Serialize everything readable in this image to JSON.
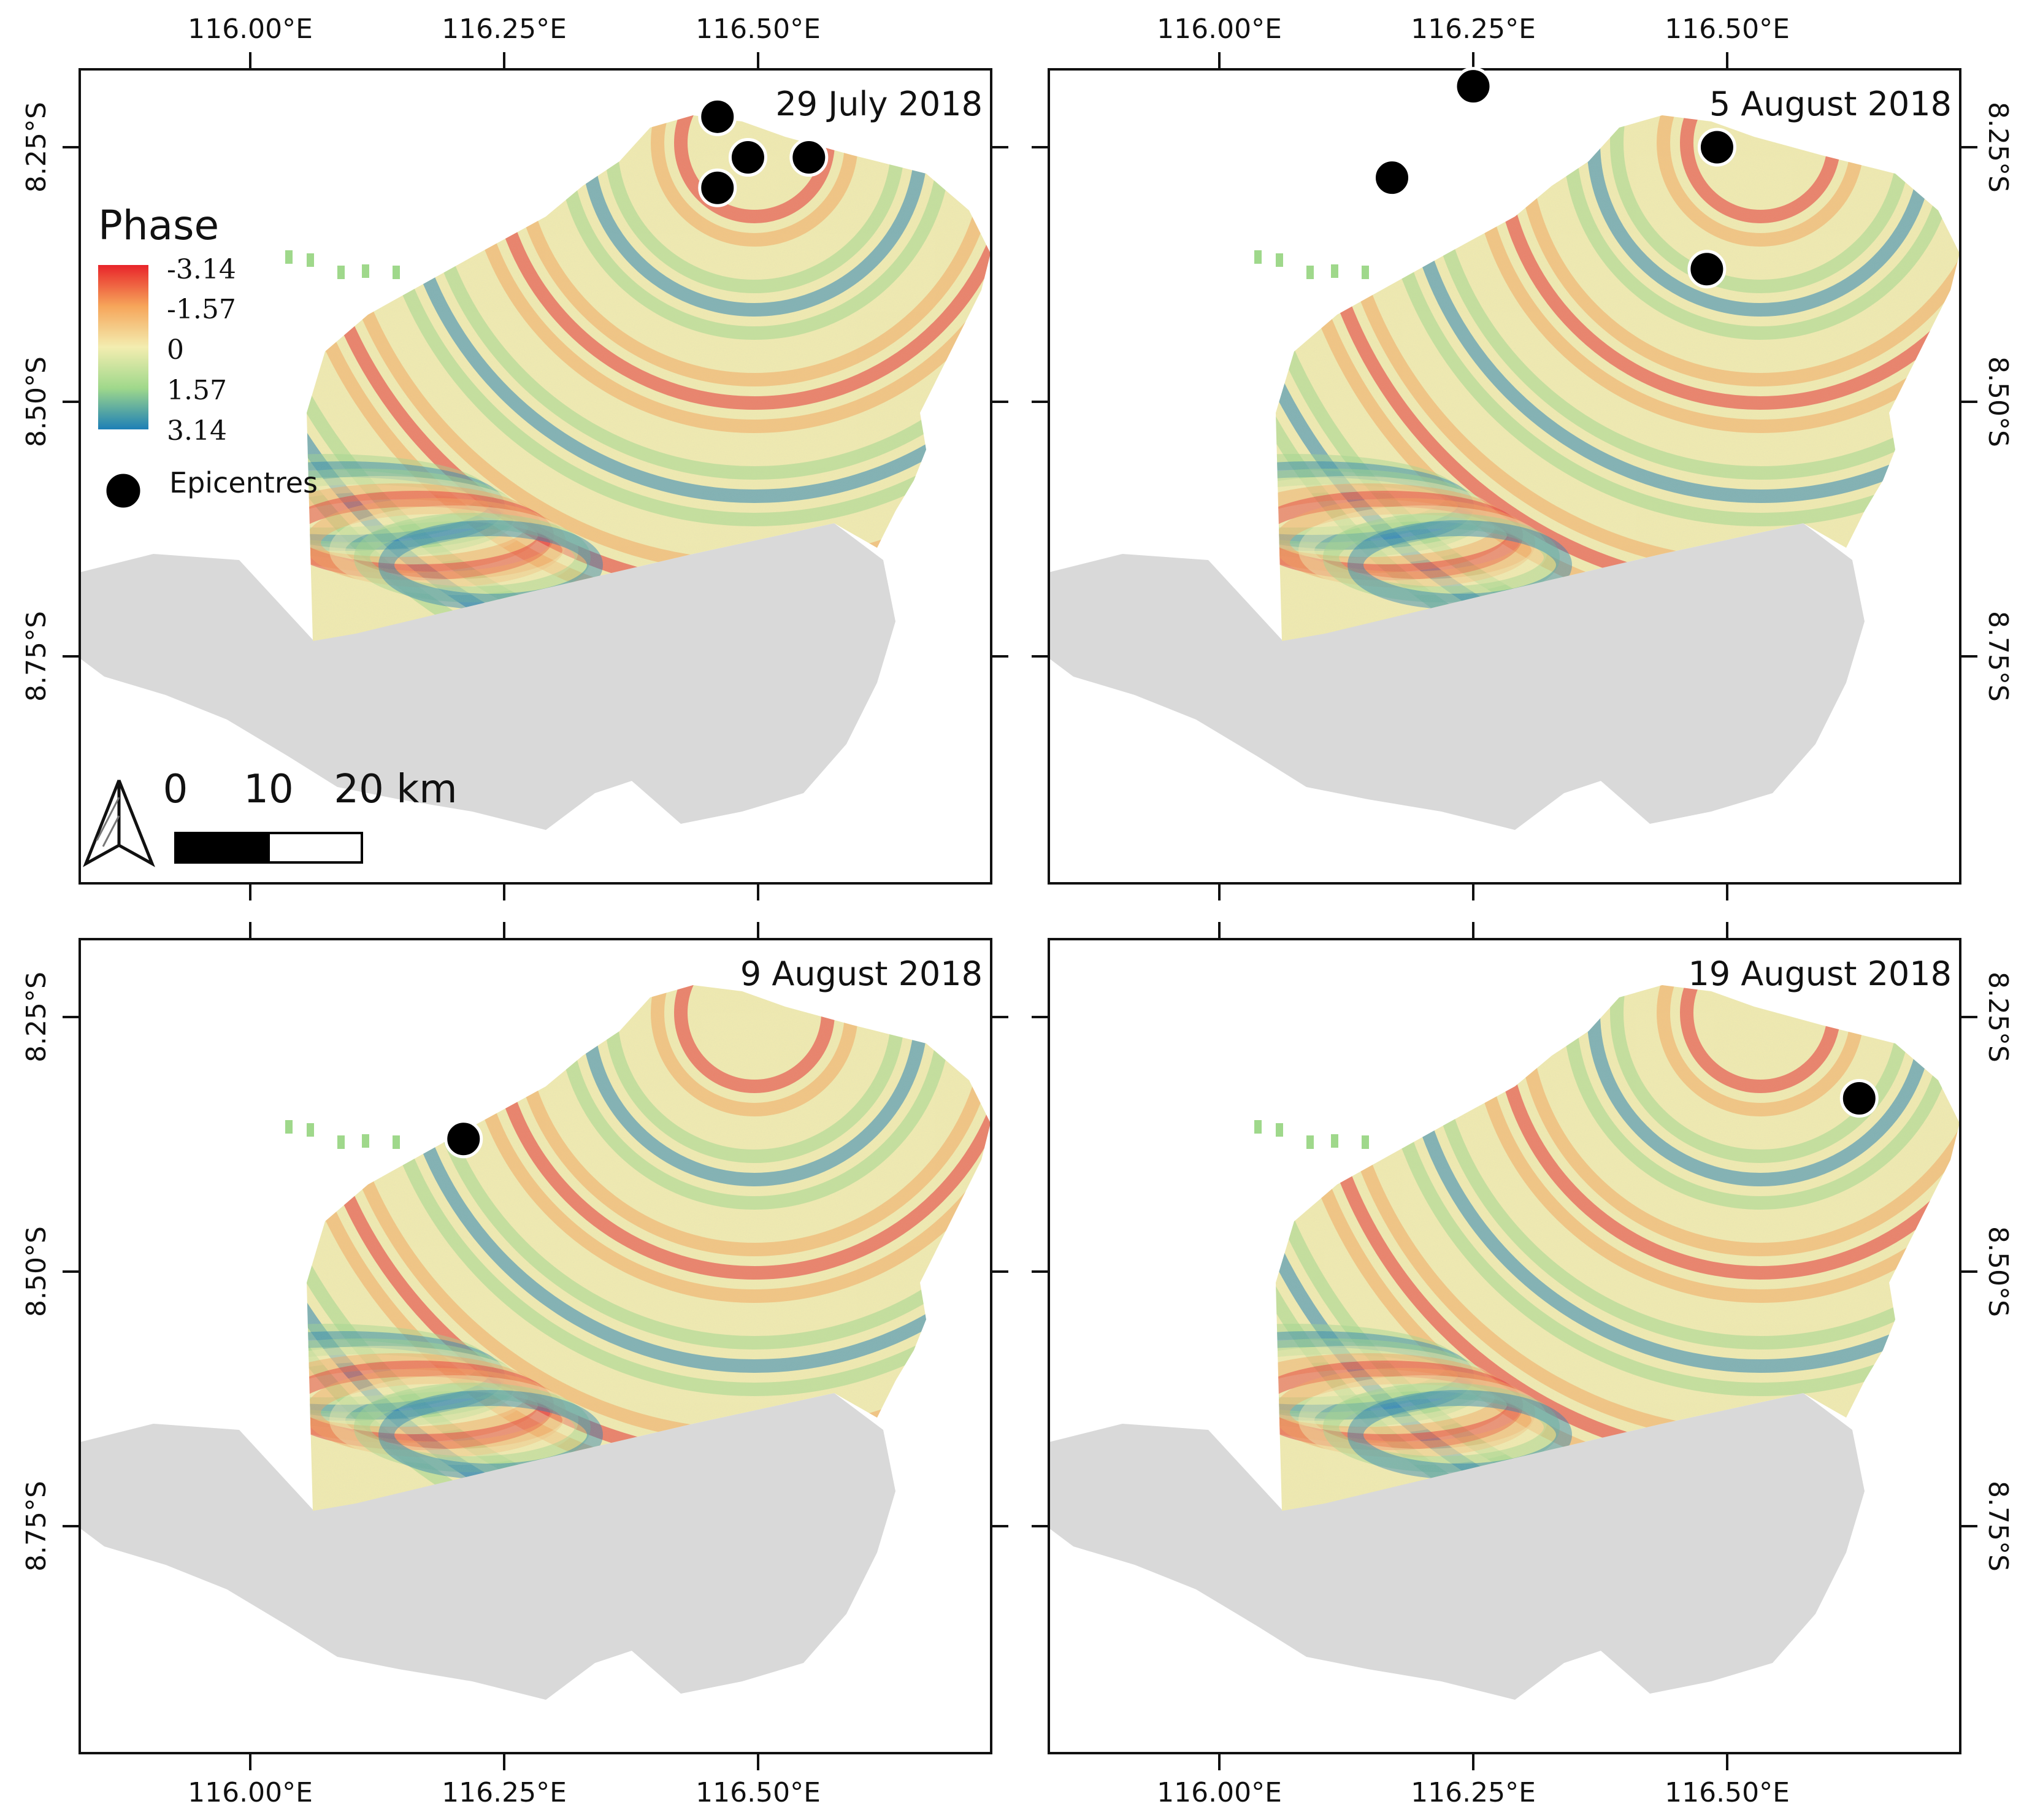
{
  "colors": {
    "phase_neg": "#e8242a",
    "phase_mid_neg": "#f6a55a",
    "phase_zero": "#f3edb0",
    "phase_mid_pos": "#9fd88b",
    "phase_pos": "#1d7fb6",
    "dem_gray": "#d9d9d9",
    "epicentre": "#000000"
  },
  "axes": {
    "lon_labels": [
      "116.00°E",
      "116.25°E",
      "116.50°E"
    ],
    "lat_labels": [
      "8.25°S",
      "8.50°S",
      "8.75°S"
    ]
  },
  "panels": [
    {
      "date": "29 July 2018",
      "epicentres": [
        [
          116.46,
          -8.22
        ],
        [
          116.49,
          -8.26
        ],
        [
          116.55,
          -8.26
        ],
        [
          116.46,
          -8.29
        ]
      ]
    },
    {
      "date": "5 August 2018",
      "epicentres": [
        [
          116.25,
          -8.19
        ],
        [
          116.17,
          -8.28
        ],
        [
          116.49,
          -8.25
        ],
        [
          116.48,
          -8.37
        ]
      ]
    },
    {
      "date": "9 August 2018",
      "epicentres": [
        [
          116.21,
          -8.37
        ]
      ]
    },
    {
      "date": "19 August 2018",
      "epicentres": [
        [
          116.63,
          -8.33
        ]
      ]
    }
  ],
  "legend": {
    "title": "Phase",
    "ticks": [
      "-3.14",
      "-1.57",
      "0",
      "1.57",
      "3.14"
    ],
    "epicentres_label": "Epicentres"
  },
  "scalebar": {
    "labels": [
      "0",
      "10",
      "20 km"
    ],
    "north_arrow_icon": "north-arrow-icon"
  }
}
